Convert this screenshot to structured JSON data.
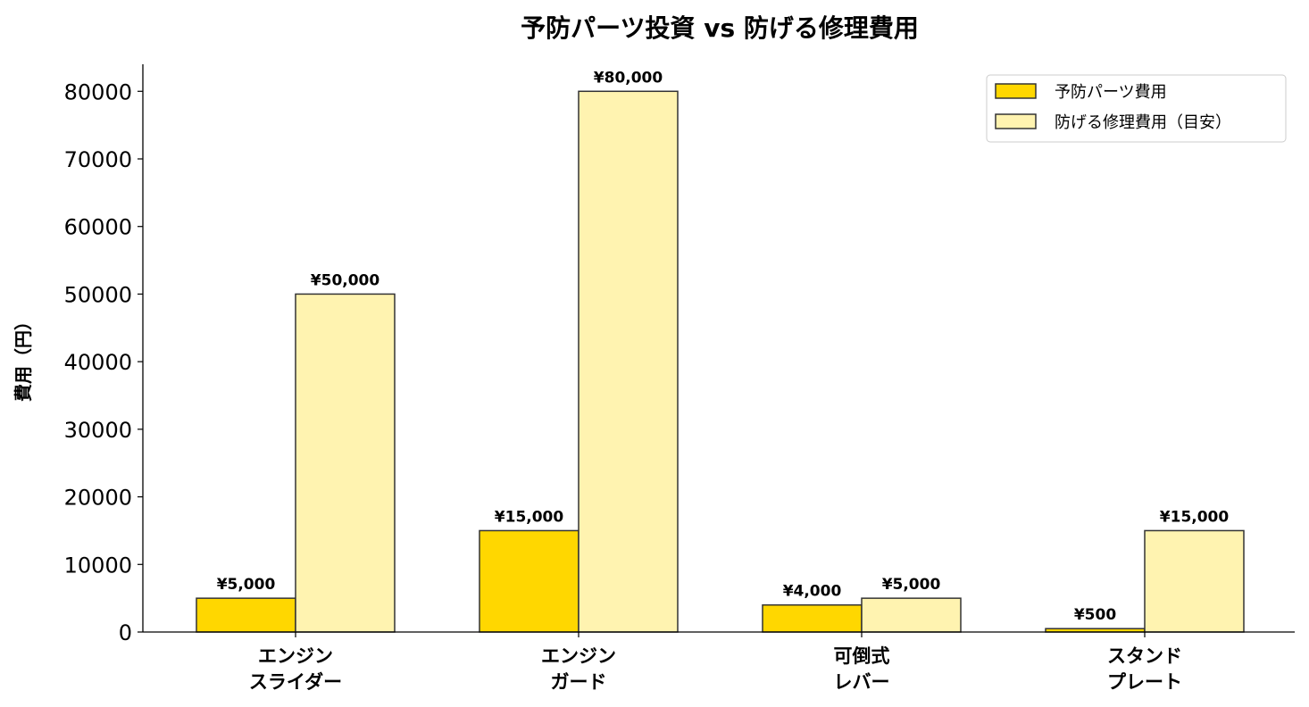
{
  "chart_data": {
    "type": "bar",
    "title": "予防パーツ投資 vs 防げる修理費用",
    "xlabel": "",
    "ylabel": "費用（円）",
    "ylim": [
      0,
      84000
    ],
    "yticks": [
      0,
      10000,
      20000,
      30000,
      40000,
      50000,
      60000,
      70000,
      80000
    ],
    "grid": false,
    "legend_position": "top-right",
    "categories": [
      "エンジン\nスライダー",
      "エンジン\nガード",
      "可倒式\nレバー",
      "スタンド\nプレート"
    ],
    "series": [
      {
        "name": "予防パーツ費用",
        "color": "#FFD700",
        "values": [
          5000,
          15000,
          4000,
          500
        ],
        "labels": [
          "¥5,000",
          "¥15,000",
          "¥4,000",
          "¥500"
        ]
      },
      {
        "name": "防げる修理費用（目安）",
        "color": "#FFF3B0",
        "values": [
          50000,
          80000,
          5000,
          15000
        ],
        "labels": [
          "¥50,000",
          "¥80,000",
          "¥5,000",
          "¥15,000"
        ]
      }
    ],
    "edge_color": "#333333"
  }
}
